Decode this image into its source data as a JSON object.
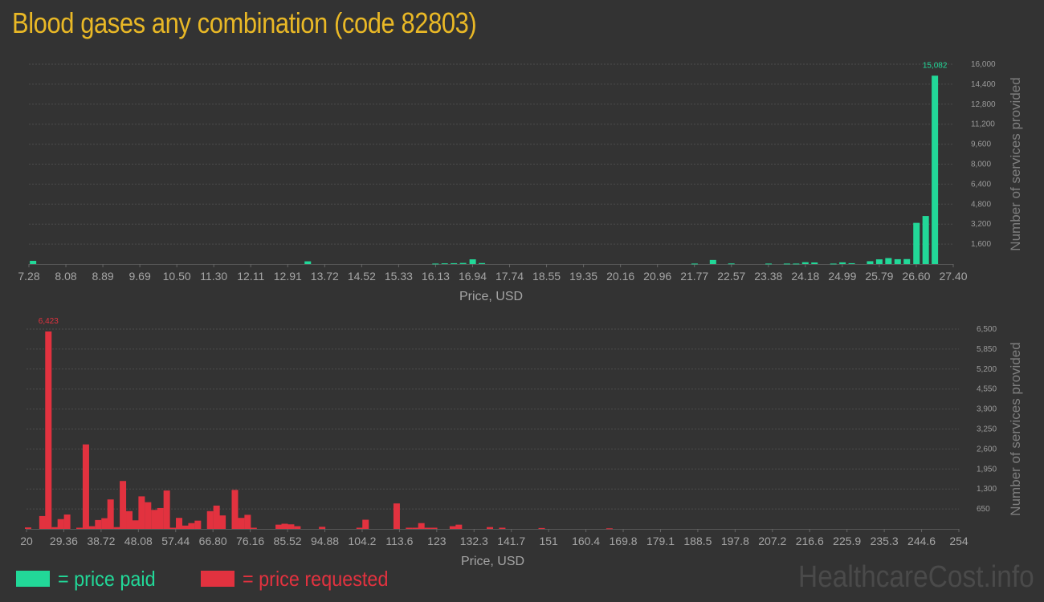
{
  "page": {
    "title": "Blood gases any combination (code 82803)",
    "watermark": "HealthcareCost.info"
  },
  "legend": [
    {
      "label": "= price paid",
      "color": "#22d898"
    },
    {
      "label": "= price requested",
      "color": "#e2323f"
    }
  ],
  "chart_data": [
    {
      "type": "bar",
      "color": "#22d898",
      "xlabel": "Price, USD",
      "ylabel": "Number of services provided",
      "ylim": [
        0,
        16000
      ],
      "yticks": [
        "1,600",
        "3,200",
        "4,800",
        "6,400",
        "8,000",
        "9,600",
        "11,200",
        "12,800",
        "14,400",
        "16,000"
      ],
      "ytick_values": [
        1600,
        3200,
        4800,
        6400,
        8000,
        9600,
        11200,
        12800,
        14400,
        16000
      ],
      "xticks": [
        "7.28",
        "8.08",
        "8.89",
        "9.69",
        "10.50",
        "11.30",
        "12.11",
        "12.91",
        "13.72",
        "14.52",
        "15.33",
        "16.13",
        "16.94",
        "17.74",
        "18.55",
        "19.35",
        "20.16",
        "20.96",
        "21.77",
        "22.57",
        "23.38",
        "24.18",
        "24.99",
        "25.79",
        "26.60",
        "27.40"
      ],
      "xlim": [
        7.28,
        27.4
      ],
      "peak_label": "15,082",
      "bars": [
        {
          "x": 7.37,
          "v": 260
        },
        {
          "x": 13.35,
          "v": 220
        },
        {
          "x": 16.13,
          "v": 40
        },
        {
          "x": 16.33,
          "v": 60
        },
        {
          "x": 16.53,
          "v": 70
        },
        {
          "x": 16.73,
          "v": 90
        },
        {
          "x": 16.94,
          "v": 380
        },
        {
          "x": 17.14,
          "v": 80
        },
        {
          "x": 21.77,
          "v": 40
        },
        {
          "x": 22.17,
          "v": 330
        },
        {
          "x": 22.57,
          "v": 50
        },
        {
          "x": 23.38,
          "v": 40
        },
        {
          "x": 23.78,
          "v": 40
        },
        {
          "x": 23.98,
          "v": 40
        },
        {
          "x": 24.18,
          "v": 150
        },
        {
          "x": 24.38,
          "v": 130
        },
        {
          "x": 24.79,
          "v": 40
        },
        {
          "x": 24.99,
          "v": 140
        },
        {
          "x": 25.19,
          "v": 70
        },
        {
          "x": 25.59,
          "v": 230
        },
        {
          "x": 25.79,
          "v": 380
        },
        {
          "x": 25.99,
          "v": 480
        },
        {
          "x": 26.19,
          "v": 390
        },
        {
          "x": 26.39,
          "v": 400
        },
        {
          "x": 26.6,
          "v": 3300
        },
        {
          "x": 26.8,
          "v": 3850
        },
        {
          "x": 27.0,
          "v": 15082
        }
      ]
    },
    {
      "type": "bar",
      "color": "#e2323f",
      "xlabel": "Price, USD",
      "ylabel": "Number of services provided",
      "ylim": [
        0,
        6500
      ],
      "yticks": [
        "650",
        "1,300",
        "1,950",
        "2,600",
        "3,250",
        "3,900",
        "4,550",
        "5,200",
        "5,850",
        "6,500"
      ],
      "ytick_values": [
        650,
        1300,
        1950,
        2600,
        3250,
        3900,
        4550,
        5200,
        5850,
        6500
      ],
      "xticks": [
        "20",
        "29.36",
        "38.72",
        "48.08",
        "57.44",
        "66.80",
        "76.16",
        "85.52",
        "94.88",
        "104.2",
        "113.6",
        "123",
        "132.3",
        "141.7",
        "151",
        "160.4",
        "169.8",
        "179.1",
        "188.5",
        "197.8",
        "207.2",
        "216.6",
        "225.9",
        "235.3",
        "244.6",
        "254"
      ],
      "xlim": [
        20,
        254
      ],
      "peak_label": "6,423",
      "bars": [
        {
          "x": 20.4,
          "v": 50
        },
        {
          "x": 24.0,
          "v": 420
        },
        {
          "x": 25.5,
          "v": 6423
        },
        {
          "x": 27.1,
          "v": 60
        },
        {
          "x": 28.6,
          "v": 320
        },
        {
          "x": 30.2,
          "v": 470
        },
        {
          "x": 33.3,
          "v": 40
        },
        {
          "x": 34.9,
          "v": 2750
        },
        {
          "x": 36.4,
          "v": 90
        },
        {
          "x": 38.0,
          "v": 290
        },
        {
          "x": 39.6,
          "v": 350
        },
        {
          "x": 41.1,
          "v": 960
        },
        {
          "x": 42.7,
          "v": 60
        },
        {
          "x": 44.2,
          "v": 1560
        },
        {
          "x": 45.8,
          "v": 580
        },
        {
          "x": 47.4,
          "v": 280
        },
        {
          "x": 48.9,
          "v": 1060
        },
        {
          "x": 50.5,
          "v": 870
        },
        {
          "x": 52.1,
          "v": 620
        },
        {
          "x": 53.6,
          "v": 680
        },
        {
          "x": 55.2,
          "v": 1250
        },
        {
          "x": 56.7,
          "v": 40
        },
        {
          "x": 58.3,
          "v": 360
        },
        {
          "x": 59.9,
          "v": 110
        },
        {
          "x": 61.4,
          "v": 190
        },
        {
          "x": 63.0,
          "v": 270
        },
        {
          "x": 66.1,
          "v": 580
        },
        {
          "x": 67.7,
          "v": 760
        },
        {
          "x": 69.2,
          "v": 440
        },
        {
          "x": 72.3,
          "v": 1270
        },
        {
          "x": 73.9,
          "v": 360
        },
        {
          "x": 75.5,
          "v": 460
        },
        {
          "x": 77.0,
          "v": 40
        },
        {
          "x": 83.3,
          "v": 140
        },
        {
          "x": 84.8,
          "v": 170
        },
        {
          "x": 86.4,
          "v": 150
        },
        {
          "x": 88.0,
          "v": 90
        },
        {
          "x": 94.2,
          "v": 70
        },
        {
          "x": 103.6,
          "v": 40
        },
        {
          "x": 105.1,
          "v": 300
        },
        {
          "x": 112.9,
          "v": 830
        },
        {
          "x": 116.0,
          "v": 40
        },
        {
          "x": 117.6,
          "v": 40
        },
        {
          "x": 119.1,
          "v": 190
        },
        {
          "x": 120.7,
          "v": 40
        },
        {
          "x": 122.3,
          "v": 40
        },
        {
          "x": 127.0,
          "v": 90
        },
        {
          "x": 128.5,
          "v": 140
        },
        {
          "x": 136.3,
          "v": 60
        },
        {
          "x": 139.4,
          "v": 40
        },
        {
          "x": 149.3,
          "v": 30
        },
        {
          "x": 166.3,
          "v": 20
        }
      ]
    }
  ]
}
